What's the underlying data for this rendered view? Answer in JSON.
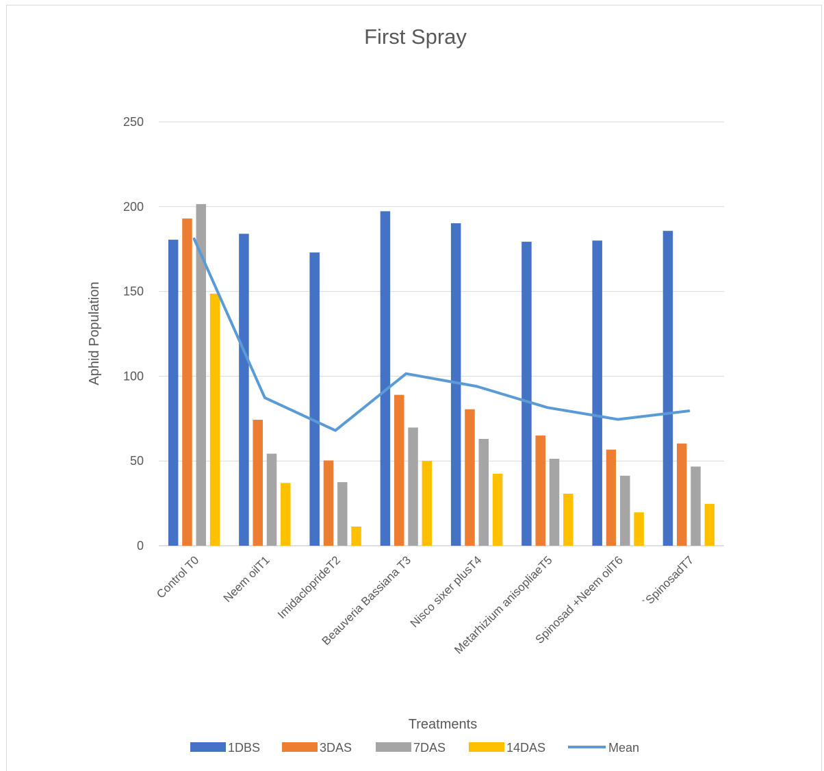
{
  "chart_data": {
    "type": "bar",
    "title": "First Spray",
    "xlabel": "Treatments",
    "ylabel": "Aphid Population",
    "ylim": [
      0,
      250
    ],
    "yticks": [
      0,
      50,
      100,
      150,
      200,
      250
    ],
    "grid": true,
    "legend_position": "bottom",
    "categories": [
      "Control T0",
      "Neem oilT1",
      "ImidaclopridеT2",
      "Beauveria Bassiana T3",
      "Nisco sixer plusT4",
      "Metarhizium anisopliaeT5",
      "Spinosad +Neem oilT6",
      "`SpinosadT7"
    ],
    "series": [
      {
        "name": "1DBS",
        "type": "bar",
        "color": "#4472c4",
        "values": [
          180.5,
          184,
          173,
          197.3,
          190.2,
          179.3,
          180,
          185.7
        ]
      },
      {
        "name": "3DAS",
        "type": "bar",
        "color": "#ed7d31",
        "values": [
          193,
          74.3,
          50.3,
          89,
          80.5,
          65,
          56.7,
          60.3
        ]
      },
      {
        "name": "7DAS",
        "type": "bar",
        "color": "#a5a5a5",
        "values": [
          201.5,
          54.3,
          37.5,
          69.7,
          63,
          51.3,
          41.3,
          46.7
        ]
      },
      {
        "name": "14DAS",
        "type": "bar",
        "color": "#ffc000",
        "values": [
          148.7,
          37,
          11.3,
          50,
          42.5,
          30.7,
          19.7,
          24.7
        ]
      },
      {
        "name": "Mean",
        "type": "line",
        "color": "#5b9bd5",
        "values": [
          181,
          87.3,
          68,
          101.5,
          94,
          81.5,
          74.5,
          79.5
        ]
      }
    ]
  }
}
